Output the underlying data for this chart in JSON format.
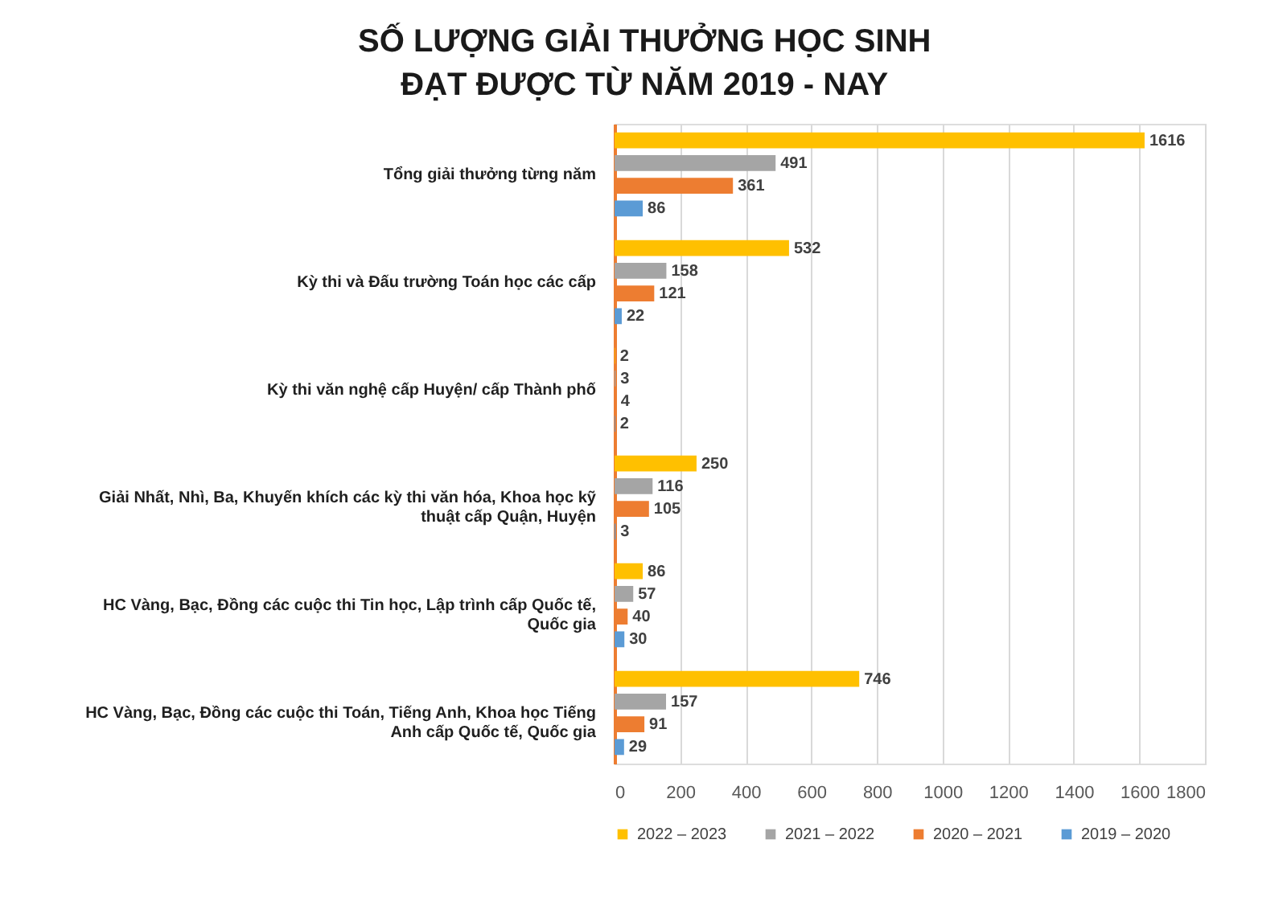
{
  "chart_data": {
    "type": "bar",
    "orientation": "horizontal",
    "title": "SỐ LƯỢNG GIẢI THƯỞNG HỌC SINH\nĐẠT ĐƯỢC TỪ NĂM 2019 - NAY",
    "categories": [
      "Tổng giải thưởng từng năm",
      "Kỳ thi và Đấu trường Toán học các cấp",
      "Kỳ thi văn nghệ cấp Huyện/ cấp Thành phố",
      "Giải Nhất, Nhì, Ba, Khuyến khích các kỳ thi văn hóa, Khoa học kỹ thuật cấp Quận, Huyện",
      "HC Vàng, Bạc, Đồng các cuộc thi Tin học, Lập trình cấp Quốc tế, Quốc gia",
      "HC Vàng, Bạc, Đồng các cuộc thi Toán, Tiếng Anh, Khoa học Tiếng Anh cấp Quốc tế, Quốc gia"
    ],
    "series": [
      {
        "name": "2022 – 2023",
        "color": "#ffc000",
        "values": [
          1616,
          532,
          2,
          250,
          86,
          746
        ]
      },
      {
        "name": "2021 – 2022",
        "color": "#a5a5a5",
        "values": [
          491,
          158,
          3,
          116,
          57,
          157
        ]
      },
      {
        "name": "2020 – 2021",
        "color": "#ed7d31",
        "values": [
          361,
          121,
          4,
          105,
          40,
          91
        ]
      },
      {
        "name": "2019 – 2020",
        "color": "#5b9bd5",
        "values": [
          86,
          22,
          2,
          3,
          30,
          29
        ]
      }
    ],
    "xlim": [
      0,
      1800
    ],
    "xticks": [
      0,
      200,
      400,
      600,
      800,
      1000,
      1200,
      1400,
      1600,
      1800
    ],
    "grid": "x",
    "legend": "bottom",
    "data_labels": true
  }
}
